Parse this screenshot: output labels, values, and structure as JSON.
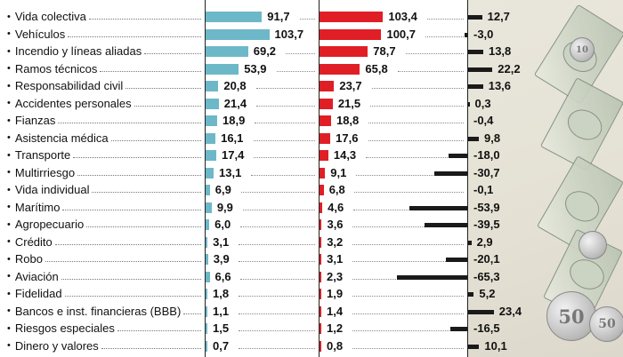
{
  "chart_data": {
    "type": "bar",
    "categories": [
      "Vida colectiva",
      "Vehículos",
      "Incendio y líneas aliadas",
      "Ramos técnicos",
      "Responsabilidad civil",
      "Accidentes personales",
      "Fianzas",
      "Asistencia médica",
      "Transporte",
      "Multirriesgo",
      "Vida individual",
      "Marítimo",
      "Agropecuario",
      "Crédito",
      "Robo",
      "Aviación",
      "Fidelidad",
      "Bancos e inst. financieras (BBB)",
      "Riesgos especiales",
      "Dinero y valores"
    ],
    "series": [
      {
        "color": "#6db8c8",
        "values": [
          91.7,
          103.7,
          69.2,
          53.9,
          20.8,
          21.4,
          18.9,
          16.1,
          17.4,
          13.1,
          6.9,
          9.9,
          6.0,
          3.1,
          3.9,
          6.6,
          1.8,
          1.1,
          1.5,
          0.7
        ],
        "labels": [
          "91,7",
          "103,7",
          "69,2",
          "53,9",
          "20,8",
          "21,4",
          "18,9",
          "16,1",
          "17,4",
          "13,1",
          "6,9",
          "9,9",
          "6,0",
          "3,1",
          "3,9",
          "6,6",
          "1,8",
          "1,1",
          "1,5",
          "0,7"
        ]
      },
      {
        "color": "#e01e25",
        "values": [
          103.4,
          100.7,
          78.7,
          65.8,
          23.7,
          21.5,
          18.8,
          17.6,
          14.3,
          9.1,
          6.8,
          4.6,
          3.6,
          3.2,
          3.1,
          2.3,
          1.9,
          1.4,
          1.2,
          0.8
        ],
        "labels": [
          "103,4",
          "100,7",
          "78,7",
          "65,8",
          "23,7",
          "21,5",
          "18,8",
          "17,6",
          "14,3",
          "9,1",
          "6,8",
          "4,6",
          "3,6",
          "3,2",
          "3,1",
          "2,3",
          "1,9",
          "1,4",
          "1,2",
          "0,8"
        ]
      },
      {
        "color": "#1a1a1a",
        "values": [
          12.7,
          -3.0,
          13.8,
          22.2,
          13.6,
          0.3,
          -0.4,
          9.8,
          -18.0,
          -30.7,
          -0.1,
          -53.9,
          -39.5,
          2.9,
          -20.1,
          -65.3,
          5.2,
          23.4,
          -16.5,
          10.1
        ],
        "labels": [
          "12,7",
          "-3,0",
          "13,8",
          "22,2",
          "13,6",
          "0,3",
          "-0,4",
          "9,8",
          "-18,0",
          "-30,7",
          "-0,1",
          "-53,9",
          "-39,5",
          "2,9",
          "-20,1",
          "-65,3",
          "5,2",
          "23,4",
          "-16,5",
          "10,1"
        ]
      }
    ],
    "grid": false,
    "legend": "none"
  },
  "decor": {
    "icons": [
      "dollar-bill-icon",
      "coin-icon"
    ],
    "coin_texts": [
      "10",
      "50",
      "50"
    ]
  }
}
